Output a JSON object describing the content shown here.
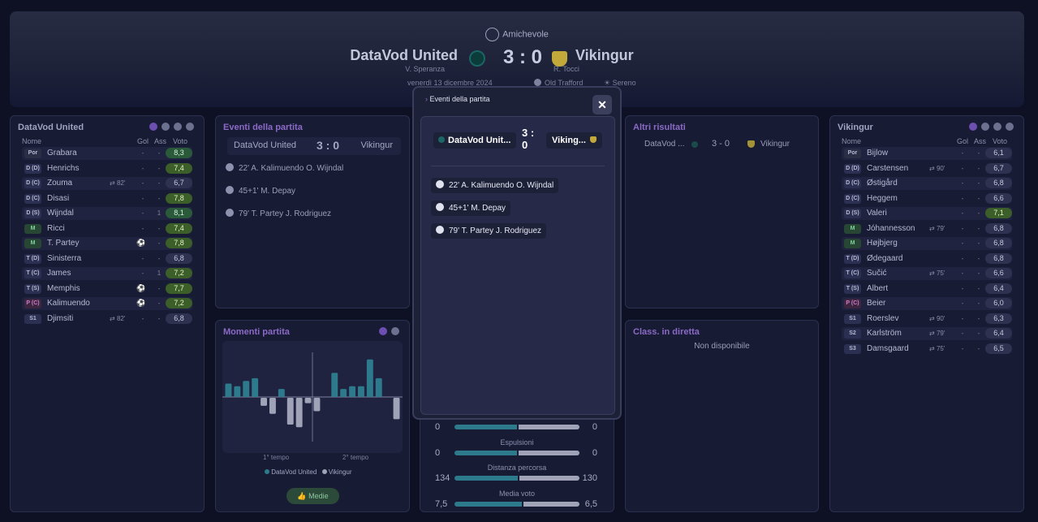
{
  "match": {
    "competition": "Amichevole",
    "home": "DataVod United",
    "away": "Vikingur",
    "home_coach": "V. Speranza",
    "away_coach": "R. Tocci",
    "score": "3 : 0",
    "date": "venerdì 13 dicembre 2024",
    "stadium": "Old Trafford",
    "weather": "Sereno"
  },
  "home_panel": {
    "title": "DataVod United",
    "columns": {
      "name": "Nome",
      "gol": "Gol",
      "ass": "Ass",
      "vote": "Voto"
    },
    "players": [
      {
        "pos": "Por",
        "name": "Grabara",
        "sub": "",
        "gol": "-",
        "ass": "-",
        "vote": "8,3"
      },
      {
        "pos": "D (D)",
        "name": "Henrichs",
        "sub": "",
        "gol": "-",
        "ass": "-",
        "vote": "7,4"
      },
      {
        "pos": "D (C)",
        "name": "Zouma",
        "sub": "82'",
        "gol": "-",
        "ass": "-",
        "vote": "6,7"
      },
      {
        "pos": "D (C)",
        "name": "Disasi",
        "sub": "",
        "gol": "-",
        "ass": "-",
        "vote": "7,8"
      },
      {
        "pos": "D (S)",
        "name": "Wijndal",
        "sub": "",
        "gol": "-",
        "ass": "1",
        "vote": "8,1"
      },
      {
        "pos": "M",
        "name": "Ricci",
        "sub": "",
        "gol": "-",
        "ass": "-",
        "vote": "7,4"
      },
      {
        "pos": "M",
        "name": "T. Partey",
        "sub": "",
        "gol": "",
        "ass": "-",
        "vote": "7,8"
      },
      {
        "pos": "T (D)",
        "name": "Sinisterra",
        "sub": "",
        "gol": "-",
        "ass": "-",
        "vote": "6,8"
      },
      {
        "pos": "T (C)",
        "name": "James",
        "sub": "",
        "gol": "-",
        "ass": "1",
        "vote": "7,2"
      },
      {
        "pos": "T (S)",
        "name": "Memphis",
        "sub": "",
        "gol": "",
        "ass": "-",
        "vote": "7,7"
      },
      {
        "pos": "P (C)",
        "name": "Kalimuendo",
        "sub": "",
        "gol": "",
        "ass": "-",
        "vote": "7,2"
      },
      {
        "pos": "S1",
        "name": "Djimsiti",
        "sub": "82'",
        "gol": "-",
        "ass": "-",
        "vote": "6,8"
      }
    ]
  },
  "away_panel": {
    "title": "Vikingur",
    "columns": {
      "name": "Nome",
      "gol": "Gol",
      "ass": "Ass",
      "vote": "Voto"
    },
    "players": [
      {
        "pos": "Por",
        "name": "Bijlow",
        "sub": "",
        "gol": "-",
        "ass": "-",
        "vote": "6,1"
      },
      {
        "pos": "D (D)",
        "name": "Carstensen",
        "sub": "90'",
        "gol": "-",
        "ass": "-",
        "vote": "6,7"
      },
      {
        "pos": "D (C)",
        "name": "Østigård",
        "sub": "",
        "gol": "-",
        "ass": "-",
        "vote": "6,8"
      },
      {
        "pos": "D (C)",
        "name": "Heggem",
        "sub": "",
        "gol": "-",
        "ass": "-",
        "vote": "6,6"
      },
      {
        "pos": "D (S)",
        "name": "Valeri",
        "sub": "",
        "gol": "-",
        "ass": "-",
        "vote": "7,1"
      },
      {
        "pos": "M",
        "name": "Jóhannesson",
        "sub": "79'",
        "gol": "-",
        "ass": "-",
        "vote": "6,8"
      },
      {
        "pos": "M",
        "name": "Højbjerg",
        "sub": "",
        "gol": "-",
        "ass": "-",
        "vote": "6,8"
      },
      {
        "pos": "T (D)",
        "name": "Ødegaard",
        "sub": "",
        "gol": "-",
        "ass": "-",
        "vote": "6,8"
      },
      {
        "pos": "T (C)",
        "name": "Sučić",
        "sub": "75'",
        "gol": "-",
        "ass": "-",
        "vote": "6,6"
      },
      {
        "pos": "T (S)",
        "name": "Albert",
        "sub": "",
        "gol": "-",
        "ass": "-",
        "vote": "6,4"
      },
      {
        "pos": "P (C)",
        "name": "Beier",
        "sub": "",
        "gol": "-",
        "ass": "-",
        "vote": "6,0"
      },
      {
        "pos": "S1",
        "name": "Roerslev",
        "sub": "90'",
        "gol": "-",
        "ass": "-",
        "vote": "6,3"
      },
      {
        "pos": "S2",
        "name": "Karlström",
        "sub": "79'",
        "gol": "-",
        "ass": "-",
        "vote": "6,4"
      },
      {
        "pos": "S3",
        "name": "Damsgaard",
        "sub": "75'",
        "gol": "-",
        "ass": "-",
        "vote": "6,5"
      }
    ]
  },
  "events_panel": {
    "title": "Eventi della partita",
    "home": "DataVod United",
    "away": "Vikingur",
    "score": "3 : 0",
    "events": [
      "22' A. Kalimuendo O. Wijndal",
      "45+1' M. Depay",
      "79' T. Partey J. Rodriguez"
    ]
  },
  "moments_panel": {
    "title": "Momenti partita",
    "first_half": "1° tempo",
    "second_half": "2° tempo",
    "legend_home": "DataVod United",
    "legend_away": "Vikingur",
    "button": "Medie"
  },
  "other_results": {
    "title": "Altri risultati",
    "home": "DataVod ...",
    "score": "3 - 0",
    "away": "Vikingur"
  },
  "live_table": {
    "title": "Class. in diretta",
    "message": "Non disponibile"
  },
  "modal": {
    "title": "Eventi della partita",
    "home": "DataVod Unit...",
    "away": "Viking...",
    "score": "3 :\n0",
    "events": [
      "22' A. Kalimuendo O. Wijndal",
      "45+1' M. Depay",
      "79' T. Partey J. Rodriguez"
    ]
  },
  "stats": [
    {
      "label": "",
      "home": "0",
      "away": "0",
      "home_share": 0.5
    },
    {
      "label": "Espulsioni",
      "home": "0",
      "away": "0",
      "home_share": 0.5
    },
    {
      "label": "Distanza percorsa",
      "home": "134",
      "away": "130",
      "home_share": 0.508
    },
    {
      "label": "Media voto",
      "home": "7,5",
      "away": "6,5",
      "home_share": 0.536
    }
  ],
  "chart_data": {
    "type": "bar",
    "x": [
      1,
      2,
      3,
      4,
      5,
      6,
      7,
      8,
      9,
      10,
      11,
      12,
      13,
      14,
      15,
      16,
      17,
      18,
      19,
      20
    ],
    "series": [
      {
        "values": [
          5,
          4,
          6,
          7,
          0,
          0,
          3,
          0,
          0,
          0,
          0,
          0,
          9,
          3,
          4,
          4,
          14,
          7,
          0,
          0
        ]
      },
      {
        "values": [
          0,
          0,
          0,
          0,
          -3,
          -6,
          0,
          -10,
          -11,
          -2,
          -5,
          0,
          0,
          0,
          0,
          0,
          0,
          0,
          0,
          -8
        ]
      }
    ],
    "xlabel": "",
    "ylabel": ""
  }
}
